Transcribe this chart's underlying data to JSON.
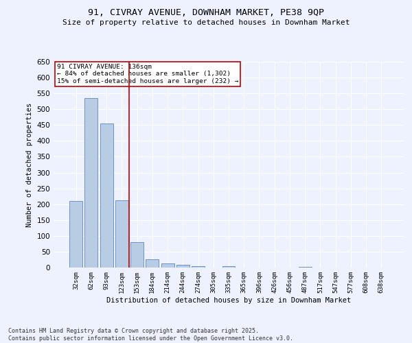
{
  "title_line1": "91, CIVRAY AVENUE, DOWNHAM MARKET, PE38 9QP",
  "title_line2": "Size of property relative to detached houses in Downham Market",
  "xlabel": "Distribution of detached houses by size in Downham Market",
  "ylabel": "Number of detached properties",
  "categories": [
    "32sqm",
    "62sqm",
    "93sqm",
    "123sqm",
    "153sqm",
    "184sqm",
    "214sqm",
    "244sqm",
    "274sqm",
    "305sqm",
    "335sqm",
    "365sqm",
    "396sqm",
    "426sqm",
    "456sqm",
    "487sqm",
    "517sqm",
    "547sqm",
    "577sqm",
    "608sqm",
    "638sqm"
  ],
  "values": [
    210,
    535,
    455,
    213,
    80,
    25,
    13,
    9,
    5,
    0,
    5,
    0,
    0,
    0,
    0,
    2,
    0,
    0,
    1,
    0,
    1
  ],
  "bar_color": "#b8cce4",
  "bar_edge_color": "#4472c4",
  "vline_color": "#c00000",
  "vline_x": 3.5,
  "annotation_title": "91 CIVRAY AVENUE: 136sqm",
  "annotation_line2": "← 84% of detached houses are smaller (1,302)",
  "annotation_line3": "15% of semi-detached houses are larger (232) →",
  "annotation_box_color": "#c00000",
  "ylim": [
    0,
    650
  ],
  "yticks": [
    0,
    50,
    100,
    150,
    200,
    250,
    300,
    350,
    400,
    450,
    500,
    550,
    600,
    650
  ],
  "bg_color": "#eef2ff",
  "plot_bg_color": "#eef2ff",
  "grid_color": "#ffffff",
  "footer_line1": "Contains HM Land Registry data © Crown copyright and database right 2025.",
  "footer_line2": "Contains public sector information licensed under the Open Government Licence v3.0."
}
